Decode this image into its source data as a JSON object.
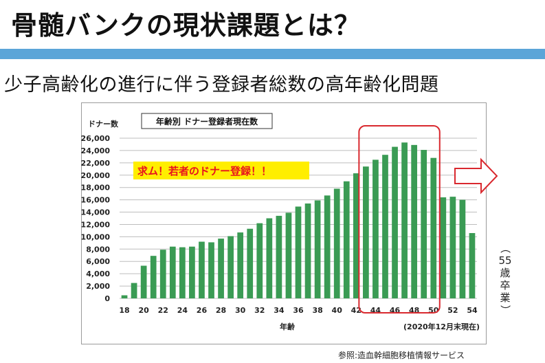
{
  "page": {
    "title": "骨髄バンクの現状課題とは？",
    "subtitle": "少子高齢化の進行に伴う登録者総数の高年齢化問題",
    "source": "参照:造血幹細胞移植情報サービス",
    "side_note": [
      "（",
      "55",
      "歳",
      "卒",
      "業",
      "）"
    ]
  },
  "chart_data": {
    "type": "bar",
    "title": "年齢別 ドナー登録者現在数",
    "ylabel": "ドナー数",
    "xlabel": "年齢",
    "date_note": "(2020年12月末現在)",
    "annotation": "求ム！若者のドナー登録！！",
    "highlight_range": [
      43,
      50
    ],
    "categories": [
      18,
      19,
      20,
      21,
      22,
      23,
      24,
      25,
      26,
      27,
      28,
      29,
      30,
      31,
      32,
      33,
      34,
      35,
      36,
      37,
      38,
      39,
      40,
      41,
      42,
      43,
      44,
      45,
      46,
      47,
      48,
      49,
      50,
      51,
      52,
      53,
      54
    ],
    "x_tick_labels": [
      "18",
      "20",
      "22",
      "24",
      "26",
      "28",
      "30",
      "32",
      "34",
      "36",
      "38",
      "40",
      "42",
      "44",
      "46",
      "48",
      "50",
      "52",
      "54"
    ],
    "values": [
      500,
      2500,
      5300,
      6900,
      7900,
      8400,
      8300,
      8400,
      9200,
      9100,
      9700,
      10100,
      10700,
      11300,
      12200,
      13000,
      13400,
      13900,
      14900,
      15400,
      15900,
      16700,
      17800,
      19000,
      20300,
      21400,
      22500,
      23300,
      24600,
      25300,
      24900,
      24100,
      22800,
      16400,
      16500,
      16000,
      10600
    ],
    "ylim": [
      0,
      26000
    ],
    "y_ticks": [
      0,
      2000,
      4000,
      6000,
      8000,
      10000,
      12000,
      14000,
      16000,
      18000,
      20000,
      22000,
      24000,
      26000
    ],
    "y_tick_labels": [
      "0",
      "2,000",
      "4,000",
      "6,000",
      "8,000",
      "10,000",
      "12,000",
      "14,000",
      "16,000",
      "18,000",
      "20,000",
      "22,000",
      "24,000",
      "26,000"
    ],
    "grid": true,
    "colors": {
      "bar": "#3a9b54",
      "grid": "#bdbdbd",
      "highlight": "#d9282e",
      "annotation_bg": "#ffee00",
      "annotation_text": "#e8121e"
    }
  }
}
